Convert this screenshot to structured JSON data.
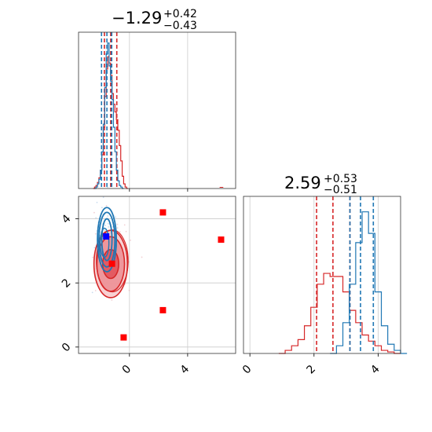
{
  "colors": {
    "red": "#d62728",
    "blue": "#1f77b4",
    "grid": "#cccccc",
    "marker_red": "#ff0000",
    "marker_blue": "#0000ff"
  },
  "chart_data": [
    {
      "type": "histogram",
      "panel": "marginal-param-1",
      "title": {
        "main": "−1.29",
        "sup": "+0.42",
        "sub": "−0.43"
      },
      "xlim": [
        -3.5,
        7.3
      ],
      "grid": true,
      "series": [
        {
          "name": "",
          "color": "red",
          "x": [
            -2.5,
            -2.4,
            -2.3,
            -2.2,
            -2.1,
            -2.0,
            -1.9,
            -1.8,
            -1.7,
            -1.6,
            -1.5,
            -1.4,
            -1.3,
            -1.2,
            -1.1,
            -1.0,
            -0.9,
            -0.8,
            -0.7,
            -0.6,
            -0.5,
            -0.4,
            -0.3,
            -0.2
          ],
          "values": [
            0.0,
            0.01,
            0.02,
            0.04,
            0.07,
            0.12,
            0.22,
            0.4,
            0.6,
            0.78,
            0.86,
            0.82,
            0.74,
            0.62,
            0.55,
            0.5,
            0.45,
            0.38,
            0.28,
            0.18,
            0.08,
            0.03,
            0.01,
            0.0
          ],
          "quantiles": [
            -1.72,
            -1.29,
            -0.87
          ]
        },
        {
          "name": "",
          "color": "blue",
          "x": [
            -2.4,
            -2.3,
            -2.2,
            -2.1,
            -2.0,
            -1.9,
            -1.8,
            -1.7,
            -1.6,
            -1.5,
            -1.4,
            -1.3,
            -1.2,
            -1.1,
            -1.0,
            -0.9,
            -0.8,
            -0.7,
            -0.6,
            -0.5
          ],
          "values": [
            0.0,
            0.01,
            0.03,
            0.06,
            0.12,
            0.24,
            0.42,
            0.66,
            0.88,
            0.95,
            0.8,
            0.7,
            0.58,
            0.4,
            0.24,
            0.12,
            0.05,
            0.02,
            0.01,
            0.0
          ],
          "quantiles": [
            -1.92,
            -1.55,
            -1.22
          ]
        }
      ]
    },
    {
      "type": "contour",
      "panel": "joint-param-1-param-2",
      "xlim": [
        -3.5,
        7.3
      ],
      "ylim": [
        -0.2,
        4.7
      ],
      "xticks": [
        "0",
        "4"
      ],
      "yticks": [
        "0",
        "2",
        "4"
      ],
      "grid": true,
      "series": [
        {
          "name": "",
          "color": "red",
          "center": [
            -1.29,
            2.59
          ],
          "levels_sigma": [
            [
              0.55,
              0.45
            ],
            [
              0.95,
              0.85
            ],
            [
              1.15,
              1.05
            ]
          ],
          "filled": true
        },
        {
          "name": "",
          "color": "blue",
          "center": [
            -1.55,
            3.35
          ],
          "levels_sigma": [
            [
              0.35,
              0.65
            ],
            [
              0.55,
              0.85
            ],
            [
              0.65,
              1.0
            ]
          ],
          "filled": false
        }
      ],
      "markers": [
        {
          "color": "marker_red",
          "x": 2.3,
          "y": 4.2
        },
        {
          "color": "marker_red",
          "x": 6.3,
          "y": 3.35
        },
        {
          "color": "marker_red",
          "x": 2.3,
          "y": 1.15
        },
        {
          "color": "marker_red",
          "x": -0.4,
          "y": 0.3
        },
        {
          "color": "marker_red",
          "x": -1.2,
          "y": 2.6
        },
        {
          "color": "marker_blue",
          "x": -1.6,
          "y": 3.45
        }
      ]
    },
    {
      "type": "histogram",
      "panel": "marginal-param-2",
      "title": {
        "main": "2.59",
        "sup": "+0.53",
        "sub": "−0.51"
      },
      "xlim": [
        -0.2,
        4.7
      ],
      "xticks": [
        "0",
        "2",
        "4"
      ],
      "grid": true,
      "series": [
        {
          "name": "",
          "color": "red",
          "x": [
            0.9,
            1.1,
            1.3,
            1.5,
            1.7,
            1.9,
            2.1,
            2.3,
            2.5,
            2.7,
            2.9,
            3.1,
            3.3,
            3.5,
            3.7,
            3.9,
            4.1,
            4.3,
            4.5
          ],
          "values": [
            0.0,
            0.02,
            0.05,
            0.09,
            0.18,
            0.3,
            0.45,
            0.52,
            0.5,
            0.5,
            0.4,
            0.28,
            0.2,
            0.12,
            0.08,
            0.05,
            0.02,
            0.01,
            0.0
          ],
          "quantiles": [
            2.08,
            2.59,
            3.12
          ]
        },
        {
          "name": "",
          "color": "blue",
          "x": [
            2.5,
            2.7,
            2.9,
            3.1,
            3.3,
            3.5,
            3.7,
            3.9,
            4.1,
            4.3,
            4.5,
            4.7
          ],
          "values": [
            0.0,
            0.05,
            0.2,
            0.45,
            0.72,
            0.92,
            0.78,
            0.4,
            0.18,
            0.06,
            0.02,
            0.0
          ],
          "quantiles": [
            3.12,
            3.45,
            3.85
          ]
        }
      ]
    }
  ]
}
